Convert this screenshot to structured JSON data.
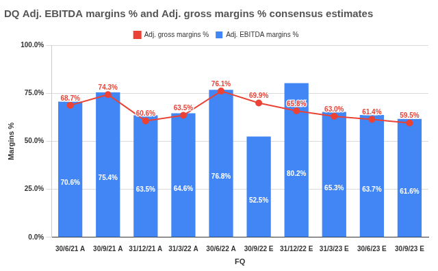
{
  "chart_data": {
    "type": "bar",
    "title": "DQ Adj. EBITDA margins % and Adj. gross margins % consensus estimates",
    "x_label": "FQ",
    "y_label": "Margins %",
    "categories": [
      "30/6/21 A",
      "30/9/21 A",
      "31/12/21 A",
      "31/3/22 A",
      "30/6/22 A",
      "30/9/22 E",
      "31/12/22 E",
      "31/3/23 E",
      "30/6/23 E",
      "30/9/23 E"
    ],
    "series": [
      {
        "name": "Adj. EBITDA margins %",
        "type": "bar",
        "color": "#4285f4",
        "values": [
          70.6,
          75.4,
          63.5,
          64.6,
          76.8,
          52.5,
          80.2,
          65.3,
          63.7,
          61.6
        ],
        "value_labels": [
          "70.6%",
          "75.4%",
          "63.5%",
          "64.6%",
          "76.8%",
          "52.5%",
          "80.2%",
          "65.3%",
          "63.7%",
          "61.6%"
        ]
      },
      {
        "name": "Adj. gross margins %",
        "type": "line",
        "color": "#ea4335",
        "marker": "circle",
        "line_style": "solid",
        "values": [
          68.7,
          74.3,
          60.6,
          63.5,
          76.1,
          69.9,
          65.8,
          63.0,
          61.4,
          59.5
        ],
        "value_labels": [
          "68.7%",
          "74.3%",
          "60.6%",
          "63.5%",
          "76.1%",
          "69.9%",
          "65.8%",
          "63.0%",
          "61.4%",
          "59.5%"
        ]
      }
    ],
    "ylim": [
      0,
      100
    ],
    "yticks": [
      {
        "value": 0,
        "label": "0.0%"
      },
      {
        "value": 25,
        "label": "25.0%"
      },
      {
        "value": 50,
        "label": "50.0%"
      },
      {
        "value": 75,
        "label": "75.0%"
      },
      {
        "value": 100,
        "label": "100.0%"
      }
    ],
    "grid": true,
    "legend": "top",
    "data_labels": true
  }
}
